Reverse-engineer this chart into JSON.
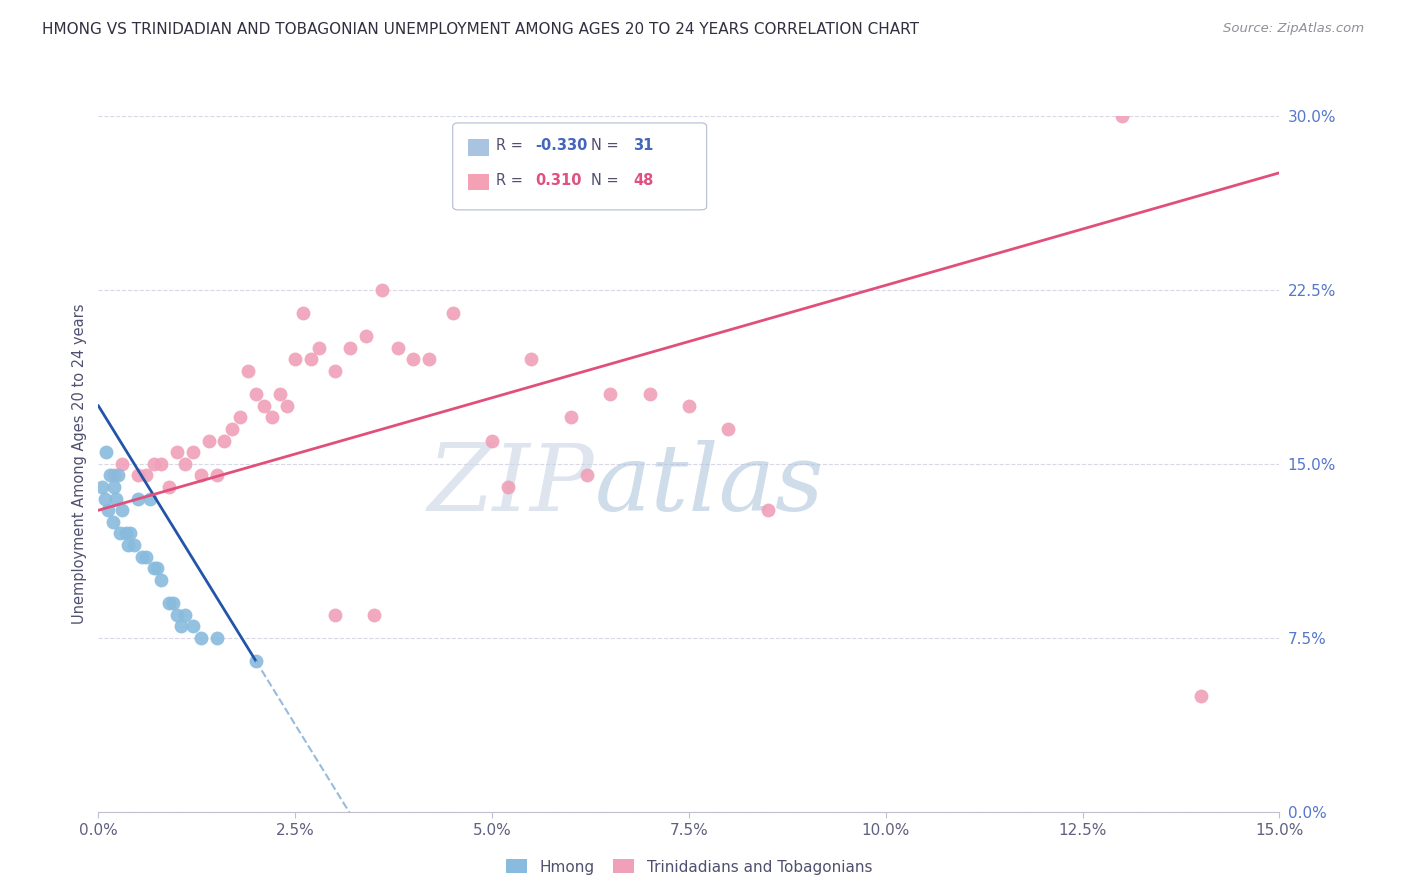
{
  "title": "HMONG VS TRINIDADIAN AND TOBAGONIAN UNEMPLOYMENT AMONG AGES 20 TO 24 YEARS CORRELATION CHART",
  "source": "Source: ZipAtlas.com",
  "ylabel": "Unemployment Among Ages 20 to 24 years",
  "watermark_zip": "ZIP",
  "watermark_atlas": "atlas",
  "x_tick_labels": [
    "0.0%",
    "2.5%",
    "5.0%",
    "7.5%",
    "10.0%",
    "12.5%",
    "15.0%"
  ],
  "x_tick_values": [
    0.0,
    2.5,
    5.0,
    7.5,
    10.0,
    12.5,
    15.0
  ],
  "y_tick_labels_right": [
    "0.0%",
    "7.5%",
    "15.0%",
    "22.5%",
    "30.0%"
  ],
  "y_tick_values": [
    0.0,
    7.5,
    15.0,
    22.5,
    30.0
  ],
  "xlim": [
    0.0,
    15.0
  ],
  "ylim": [
    0.0,
    30.0
  ],
  "legend_entries": [
    {
      "label": "Hmong",
      "color": "#a8c4e0",
      "R": "-0.330",
      "N": "31"
    },
    {
      "label": "Trinidadians and Tobagonians",
      "color": "#f4a0b5",
      "R": "0.310",
      "N": "48"
    }
  ],
  "hmong_x": [
    0.05,
    0.08,
    0.1,
    0.12,
    0.15,
    0.18,
    0.2,
    0.22,
    0.25,
    0.28,
    0.3,
    0.35,
    0.38,
    0.4,
    0.45,
    0.5,
    0.55,
    0.6,
    0.65,
    0.7,
    0.75,
    0.8,
    0.9,
    0.95,
    1.0,
    1.05,
    1.1,
    1.2,
    1.3,
    1.5,
    2.0
  ],
  "hmong_y": [
    14.0,
    13.5,
    15.5,
    13.0,
    14.5,
    12.5,
    14.0,
    13.5,
    14.5,
    12.0,
    13.0,
    12.0,
    11.5,
    12.0,
    11.5,
    13.5,
    11.0,
    11.0,
    13.5,
    10.5,
    10.5,
    10.0,
    9.0,
    9.0,
    8.5,
    8.0,
    8.5,
    8.0,
    7.5,
    7.5,
    6.5
  ],
  "trint_x": [
    0.2,
    0.3,
    0.5,
    0.6,
    0.7,
    0.8,
    0.9,
    1.0,
    1.1,
    1.2,
    1.3,
    1.4,
    1.5,
    1.6,
    1.7,
    1.8,
    1.9,
    2.0,
    2.1,
    2.2,
    2.3,
    2.4,
    2.5,
    2.6,
    2.7,
    2.8,
    3.0,
    3.2,
    3.4,
    3.6,
    3.8,
    4.0,
    4.2,
    4.5,
    5.0,
    5.5,
    6.0,
    6.5,
    7.0,
    7.5,
    8.0,
    8.5,
    3.0,
    3.5,
    5.2,
    6.2,
    13.0,
    14.0
  ],
  "trint_y": [
    14.5,
    15.0,
    14.5,
    14.5,
    15.0,
    15.0,
    14.0,
    15.5,
    15.0,
    15.5,
    14.5,
    16.0,
    14.5,
    16.0,
    16.5,
    17.0,
    19.0,
    18.0,
    17.5,
    17.0,
    18.0,
    17.5,
    19.5,
    21.5,
    19.5,
    20.0,
    19.0,
    20.0,
    20.5,
    22.5,
    20.0,
    19.5,
    19.5,
    21.5,
    16.0,
    19.5,
    17.0,
    18.0,
    18.0,
    17.5,
    16.5,
    13.0,
    8.5,
    8.5,
    14.0,
    14.5,
    30.0,
    5.0
  ],
  "hmong_line_color": "#2255aa",
  "hmong_dash_color": "#99bbdd",
  "trint_line_color": "#e0507a",
  "scatter_hmong_color": "#88bbdd",
  "scatter_trint_color": "#f0a0b8",
  "background_color": "#ffffff",
  "grid_color": "#d8d8e8",
  "hmong_trendline_x0": 0.0,
  "hmong_trendline_y0": 17.5,
  "hmong_trendline_slope": -5.5,
  "trint_trendline_x0": 0.0,
  "trint_trendline_y0": 13.0,
  "trint_trendline_slope": 0.97
}
